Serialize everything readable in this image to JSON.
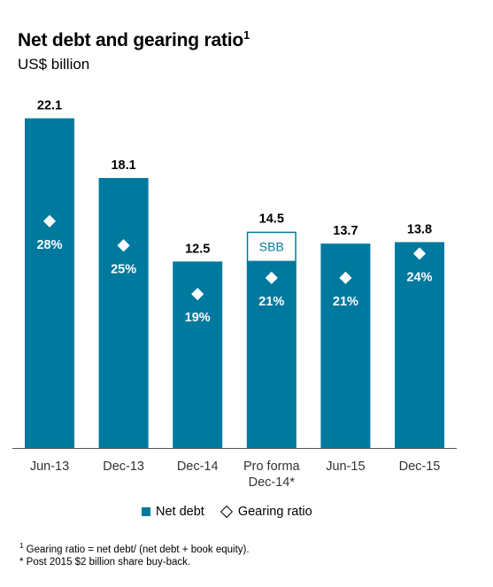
{
  "title": "Net debt and gearing ratio",
  "title_sup": "1",
  "subtitle": "US$ billion",
  "legend": {
    "bar": "Net debt",
    "marker": "Gearing ratio"
  },
  "footnotes": {
    "f1_mark": "1",
    "f1_text": "Gearing ratio = net debt/ (net debt + book equity).",
    "f2": "* Post 2015 $2 billion share buy-back."
  },
  "chart_data": {
    "type": "bar",
    "categories": [
      "Jun-13",
      "Dec-13",
      "Dec-14",
      "Pro forma Dec-14*",
      "Jun-15",
      "Dec-15"
    ],
    "category_lines": [
      [
        "Jun-13"
      ],
      [
        "Dec-13"
      ],
      [
        "Dec-14"
      ],
      [
        "Pro forma",
        "Dec-14*"
      ],
      [
        "Jun-15"
      ],
      [
        "Dec-15"
      ]
    ],
    "series": [
      {
        "name": "Net debt",
        "values": [
          22.1,
          18.1,
          12.5,
          12.5,
          13.7,
          13.8
        ]
      },
      {
        "name": "SBB",
        "values": [
          0,
          0,
          0,
          2.0,
          0,
          0
        ]
      }
    ],
    "value_labels": [
      "22.1",
      "18.1",
      "12.5",
      "14.5",
      "13.7",
      "13.8"
    ],
    "gearing_ratio": [
      28,
      25,
      19,
      21,
      21,
      24
    ],
    "gearing_labels": [
      "28%",
      "25%",
      "19%",
      "21%",
      "21%",
      "24%"
    ],
    "segment_label": "SBB",
    "colors": {
      "bar": "#00799F",
      "outline": "#00799F",
      "axis": "#555555"
    }
  }
}
